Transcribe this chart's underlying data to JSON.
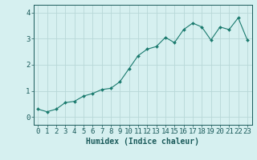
{
  "x": [
    0,
    1,
    2,
    3,
    4,
    5,
    6,
    7,
    8,
    9,
    10,
    11,
    12,
    13,
    14,
    15,
    16,
    17,
    18,
    19,
    20,
    21,
    22,
    23
  ],
  "y": [
    0.3,
    0.2,
    0.3,
    0.55,
    0.6,
    0.8,
    0.9,
    1.05,
    1.1,
    1.35,
    1.85,
    2.35,
    2.6,
    2.7,
    3.05,
    2.85,
    3.35,
    3.6,
    3.45,
    2.95,
    3.45,
    3.35,
    3.8,
    2.95
  ],
  "line_color": "#1a7a6e",
  "marker": "D",
  "marker_size": 2.0,
  "bg_color": "#d6f0f0",
  "grid_color": "#b8d8d8",
  "xlabel": "Humidex (Indice chaleur)",
  "ylim": [
    -0.3,
    4.3
  ],
  "xlim": [
    -0.5,
    23.5
  ],
  "yticks": [
    0,
    1,
    2,
    3,
    4
  ],
  "xticks": [
    0,
    1,
    2,
    3,
    4,
    5,
    6,
    7,
    8,
    9,
    10,
    11,
    12,
    13,
    14,
    15,
    16,
    17,
    18,
    19,
    20,
    21,
    22,
    23
  ],
  "tick_color": "#1a5a5a",
  "label_fontsize": 7,
  "tick_fontsize": 6.5
}
